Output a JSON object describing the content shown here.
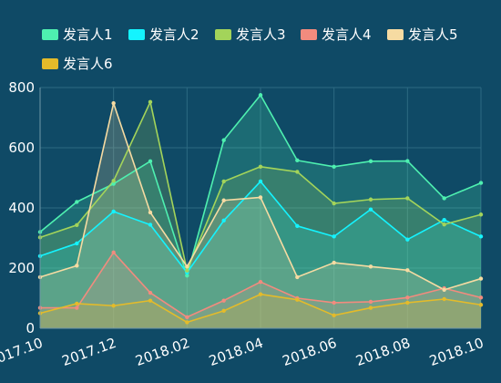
{
  "chart_data": {
    "type": "area",
    "categories": [
      "2017.10",
      "2017.11",
      "2017.12",
      "2018.01",
      "2018.02",
      "2018.03",
      "2018.04",
      "2018.05",
      "2018.06",
      "2018.07",
      "2018.08",
      "2018.09",
      "2018.10"
    ],
    "x_tick_labels": [
      "2017.10",
      "2017.12",
      "2018.02",
      "2018.04",
      "2018.06",
      "2018.08",
      "2018.10"
    ],
    "ylim": [
      0,
      800
    ],
    "y_ticks": [
      0,
      200,
      400,
      600,
      800
    ],
    "grid": true,
    "legend_position": "top",
    "series": [
      {
        "name": "发言人1",
        "color": "#4ef0b0",
        "values": [
          320,
          420,
          480,
          555,
          175,
          625,
          775,
          558,
          537,
          555,
          556,
          432,
          483
        ]
      },
      {
        "name": "发言人2",
        "color": "#14f4ff",
        "values": [
          240,
          282,
          388,
          344,
          185,
          358,
          488,
          340,
          305,
          395,
          295,
          360,
          305
        ]
      },
      {
        "name": "发言人3",
        "color": "#a3d45a",
        "values": [
          302,
          343,
          490,
          752,
          192,
          488,
          537,
          520,
          415,
          428,
          432,
          345,
          378
        ]
      },
      {
        "name": "发言人4",
        "color": "#f28b7e",
        "values": [
          68,
          68,
          252,
          118,
          37,
          92,
          154,
          100,
          85,
          88,
          102,
          133,
          102
        ]
      },
      {
        "name": "发言人5",
        "color": "#f6dba2",
        "values": [
          170,
          208,
          748,
          385,
          205,
          425,
          435,
          170,
          218,
          205,
          193,
          128,
          165
        ]
      },
      {
        "name": "发言人6",
        "color": "#e4bb2a",
        "values": [
          50,
          82,
          75,
          92,
          20,
          58,
          113,
          95,
          43,
          68,
          85,
          97,
          78
        ]
      }
    ]
  }
}
